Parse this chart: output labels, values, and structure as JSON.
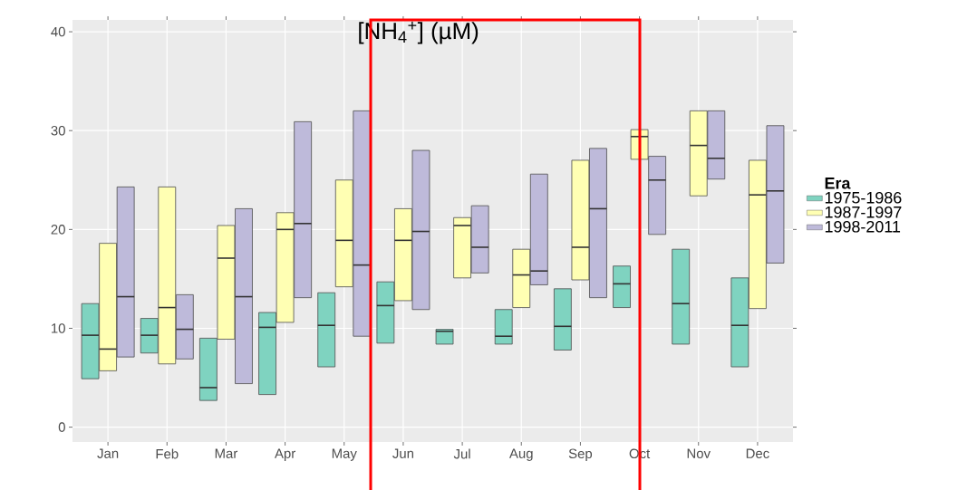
{
  "chart_data": {
    "type": "box",
    "title": "[NH$_{4}$$^{+}$] (µM)",
    "legend_title": "Era",
    "categories": [
      "Jan",
      "Feb",
      "Mar",
      "Apr",
      "May",
      "Jun",
      "Jul",
      "Aug",
      "Sep",
      "Oct",
      "Nov",
      "Dec"
    ],
    "ylim": [
      -1.5,
      41.2
    ],
    "yticks": [
      0,
      10,
      20,
      30,
      40
    ],
    "grid": true,
    "legend": "right",
    "series": [
      {
        "name": "1975-1986",
        "color": "#7fd3c0",
        "boxes": [
          {
            "low": 4.9,
            "q1": 4.9,
            "median": 9.3,
            "q3": 12.5,
            "high": 12.5
          },
          {
            "low": 7.5,
            "q1": 7.5,
            "median": 9.3,
            "q3": 11.0,
            "high": 11.0
          },
          {
            "low": 2.7,
            "q1": 2.7,
            "median": 4.0,
            "q3": 9.0,
            "high": 9.0
          },
          {
            "low": 3.3,
            "q1": 3.3,
            "median": 10.1,
            "q3": 11.6,
            "high": 11.6
          },
          {
            "low": 6.1,
            "q1": 6.1,
            "median": 10.3,
            "q3": 13.6,
            "high": 13.6
          },
          {
            "low": 8.5,
            "q1": 8.5,
            "median": 12.3,
            "q3": 14.7,
            "high": 14.7
          },
          {
            "low": 8.4,
            "q1": 8.4,
            "median": 9.7,
            "q3": 9.9,
            "high": 9.9
          },
          {
            "low": 8.4,
            "q1": 8.4,
            "median": 9.2,
            "q3": 11.9,
            "high": 11.9
          },
          {
            "low": 7.8,
            "q1": 7.8,
            "median": 10.2,
            "q3": 14.0,
            "high": 14.0
          },
          {
            "low": 12.1,
            "q1": 12.1,
            "median": 14.5,
            "q3": 16.3,
            "high": 16.3
          },
          {
            "low": 8.4,
            "q1": 8.4,
            "median": 12.5,
            "q3": 18.0,
            "high": 18.0
          },
          {
            "low": 6.1,
            "q1": 6.1,
            "median": 10.3,
            "q3": 15.1,
            "high": 15.1
          }
        ]
      },
      {
        "name": "1987-1997",
        "color": "#ffffb3",
        "boxes": [
          {
            "low": 5.7,
            "q1": 5.7,
            "median": 7.9,
            "q3": 18.6,
            "high": 18.6
          },
          {
            "low": 6.4,
            "q1": 6.4,
            "median": 12.1,
            "q3": 24.3,
            "high": 24.3
          },
          {
            "low": 8.9,
            "q1": 8.9,
            "median": 17.1,
            "q3": 20.4,
            "high": 20.4
          },
          {
            "low": 10.6,
            "q1": 10.6,
            "median": 20.0,
            "q3": 21.7,
            "high": 21.7
          },
          {
            "low": 14.2,
            "q1": 14.2,
            "median": 18.9,
            "q3": 25.0,
            "high": 25.0
          },
          {
            "low": 12.8,
            "q1": 12.8,
            "median": 18.9,
            "q3": 22.1,
            "high": 22.1
          },
          {
            "low": 15.1,
            "q1": 15.1,
            "median": 20.4,
            "q3": 21.2,
            "high": 21.2
          },
          {
            "low": 12.1,
            "q1": 12.1,
            "median": 15.4,
            "q3": 18.0,
            "high": 18.0
          },
          {
            "low": 14.9,
            "q1": 14.9,
            "median": 18.2,
            "q3": 27.0,
            "high": 27.0
          },
          {
            "low": 27.1,
            "q1": 27.1,
            "median": 29.4,
            "q3": 30.1,
            "high": 30.1
          },
          {
            "low": 23.4,
            "q1": 23.4,
            "median": 28.5,
            "q3": 32.0,
            "high": 32.0
          },
          {
            "low": 12.0,
            "q1": 12.0,
            "median": 23.5,
            "q3": 27.0,
            "high": 27.0
          }
        ]
      },
      {
        "name": "1998-2011",
        "color": "#bebada",
        "boxes": [
          {
            "low": 7.1,
            "q1": 7.1,
            "median": 13.2,
            "q3": 24.3,
            "high": 24.3
          },
          {
            "low": 6.9,
            "q1": 6.9,
            "median": 9.9,
            "q3": 13.4,
            "high": 13.4
          },
          {
            "low": 4.4,
            "q1": 4.4,
            "median": 13.2,
            "q3": 22.1,
            "high": 22.1
          },
          {
            "low": 13.1,
            "q1": 13.1,
            "median": 20.6,
            "q3": 30.9,
            "high": 30.9
          },
          {
            "low": 9.2,
            "q1": 9.2,
            "median": 16.4,
            "q3": 32.0,
            "high": 32.0
          },
          {
            "low": 11.9,
            "q1": 11.9,
            "median": 19.8,
            "q3": 28.0,
            "high": 28.0
          },
          {
            "low": 15.6,
            "q1": 15.6,
            "median": 18.2,
            "q3": 22.4,
            "high": 22.4
          },
          {
            "low": 14.4,
            "q1": 14.4,
            "median": 15.8,
            "q3": 25.6,
            "high": 25.6
          },
          {
            "low": 13.1,
            "q1": 13.1,
            "median": 22.1,
            "q3": 28.2,
            "high": 28.2
          },
          {
            "low": 19.5,
            "q1": 19.5,
            "median": 25.0,
            "q3": 27.4,
            "high": 27.4
          },
          {
            "low": 25.1,
            "q1": 25.1,
            "median": 27.2,
            "q3": 32.0,
            "high": 32.0
          },
          {
            "low": 16.6,
            "q1": 16.6,
            "median": 23.9,
            "q3": 30.5,
            "high": 30.5
          }
        ]
      }
    ]
  }
}
